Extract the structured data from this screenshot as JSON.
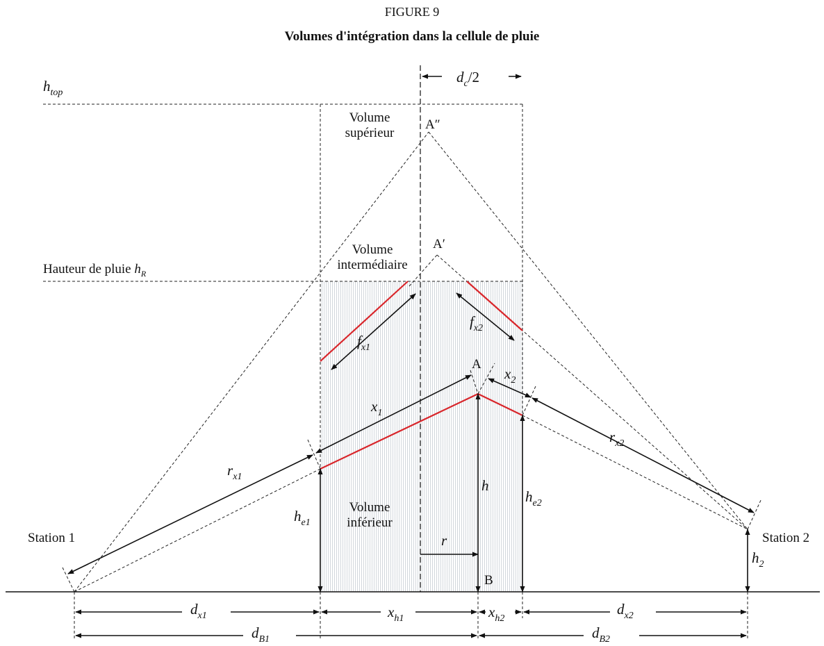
{
  "figure": {
    "number": "FIGURE 9",
    "title": "Volumes d'intégration dans la cellule de pluie"
  },
  "labels": {
    "h_top_main": "h",
    "h_top_sub": "top",
    "rain_height_text": "Hauteur de pluie ",
    "rain_height_sym": "h",
    "rain_height_sub": "R",
    "dc_half_main": "d",
    "dc_half_sub": "c",
    "dc_half_rest": "/2",
    "volume_superieur_1": "Volume",
    "volume_superieur_2": "supérieur",
    "volume_intermediaire_1": "Volume",
    "volume_intermediaire_2": "intermédiaire",
    "volume_inferieur_1": "Volume",
    "volume_inferieur_2": "inférieur",
    "point_A2": "A″",
    "point_A1": "A′",
    "point_A": "A",
    "point_B": "B",
    "station_1": "Station 1",
    "station_2": "Station 2",
    "fx1_main": "f",
    "fx1_sub": "x1",
    "fx2_main": "f",
    "fx2_sub": "x2",
    "x1_main": "x",
    "x1_sub": "1",
    "x2_main": "x",
    "x2_sub": "2",
    "rx1_main": "r",
    "rx1_sub": "x1",
    "rx2_main": "r",
    "rx2_sub": "x2",
    "h_main": "h",
    "r_main": "r",
    "he1_main": "h",
    "he1_sub": "e1",
    "he2_main": "h",
    "he2_sub": "e2",
    "h2_main": "h",
    "h2_sub": "2",
    "dx1_main": "d",
    "dx1_sub": "x1",
    "dx2_main": "d",
    "dx2_sub": "x2",
    "xh1_main": "x",
    "xh1_sub": "h1",
    "xh2_main": "x",
    "xh2_sub": "h2",
    "dB1_main": "d",
    "dB1_sub": "B1",
    "dB2_main": "d",
    "dB2_sub": "B2"
  },
  "colors": {
    "effective_path": "#d9262b",
    "lines": "#111111",
    "rain_fill": "#d6dbe0"
  }
}
